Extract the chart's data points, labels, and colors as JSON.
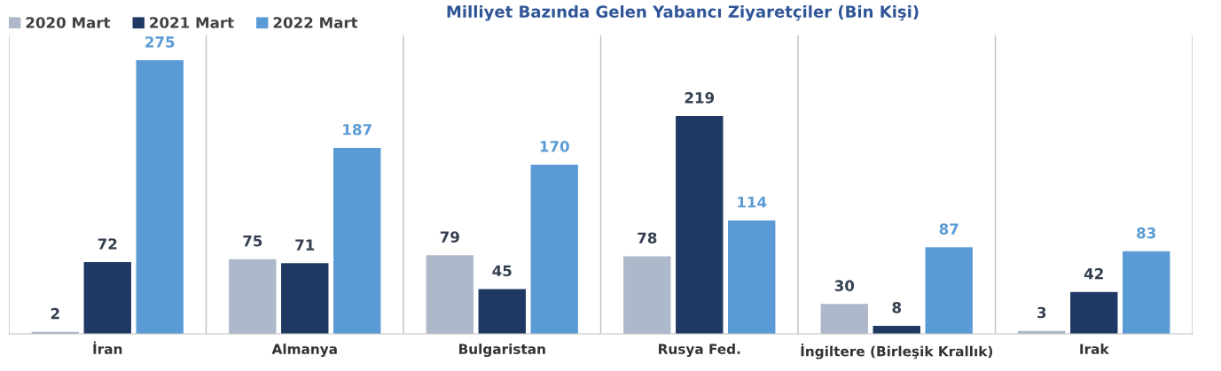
{
  "chart_data": {
    "type": "bar",
    "title": "Milliyet Bazında Gelen Yabancı Ziyaretçiler (Bin Kişi)",
    "categories": [
      "İran",
      "Almanya",
      "Bulgaristan",
      "Rusya Fed.",
      "İngiltere (Birleşik Krallık)",
      "Irak"
    ],
    "series": [
      {
        "name": "2020 Mart",
        "color": "#adb9ca",
        "values": [
          2,
          75,
          79,
          78,
          30,
          3
        ]
      },
      {
        "name": "2021 Mart",
        "color": "#203864",
        "values": [
          72,
          71,
          45,
          219,
          8,
          42
        ]
      },
      {
        "name": "2022 Mart",
        "color": "#5b9bd5",
        "values": [
          275,
          187,
          170,
          114,
          87,
          83
        ]
      }
    ],
    "ylim": [
      0,
      300
    ],
    "data_labels": true,
    "grid": "x",
    "legend": "top left",
    "tick_labels": "x"
  }
}
